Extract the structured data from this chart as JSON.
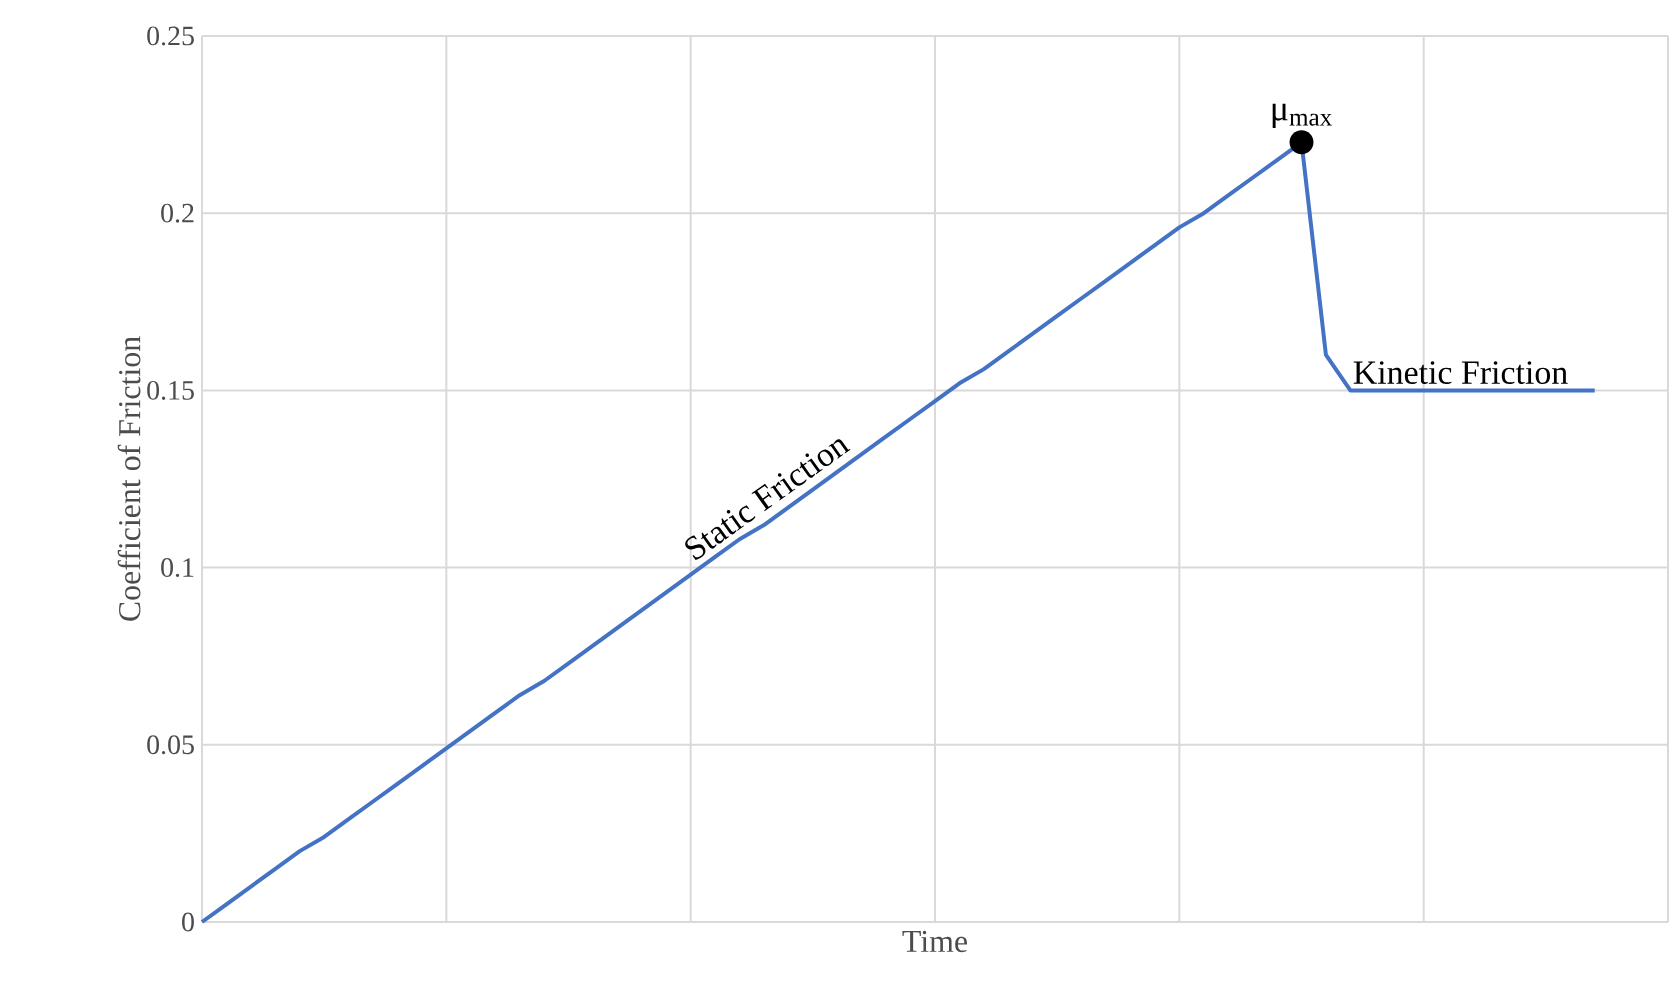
{
  "chart_data": {
    "type": "line",
    "xlabel": "Time",
    "ylabel": "Coefficient of Friction",
    "categories": [
      null,
      null,
      null,
      null,
      null,
      null,
      null,
      null,
      null,
      null,
      null,
      null,
      null,
      null,
      null,
      null,
      null,
      null,
      null,
      null,
      null,
      null,
      null,
      null,
      null,
      null,
      null,
      null,
      null,
      null,
      null,
      null,
      null,
      null,
      null,
      null,
      null,
      null,
      null,
      null,
      null,
      null,
      null,
      null,
      null,
      null,
      null,
      null,
      null,
      null,
      null,
      null,
      null,
      null,
      null,
      null,
      null,
      null
    ],
    "ylim": [
      0,
      0.25
    ],
    "yticks": [
      0,
      0.05,
      0.1,
      0.15,
      0.2,
      0.25
    ],
    "grid": true,
    "tick_labels": "y",
    "series": [
      {
        "color": "#4472c4",
        "values": [
          0,
          0.005,
          0.01,
          0.015,
          0.02,
          0.024,
          0.029,
          0.034,
          0.039,
          0.044,
          0.049,
          0.054,
          0.059,
          0.064,
          0.068,
          0.073,
          0.078,
          0.083,
          0.088,
          0.093,
          0.098,
          0.103,
          0.108,
          0.112,
          0.117,
          0.122,
          0.127,
          0.132,
          0.137,
          0.142,
          0.147,
          0.152,
          0.156,
          0.161,
          0.166,
          0.171,
          0.176,
          0.181,
          0.186,
          0.191,
          0.196,
          0.2,
          0.205,
          0.21,
          0.215,
          0.22,
          0.16,
          0.15,
          0.15,
          0.15,
          0.15,
          0.15,
          0.15,
          0.15,
          0.15,
          0.15,
          0.15,
          0.15
        ]
      }
    ],
    "annotations": [
      {
        "text": "μ$_{max}$",
        "y": 0.22
      },
      "Static Friction",
      {
        "text": "Kinetic Friction",
        "y": 0.15
      }
    ]
  }
}
